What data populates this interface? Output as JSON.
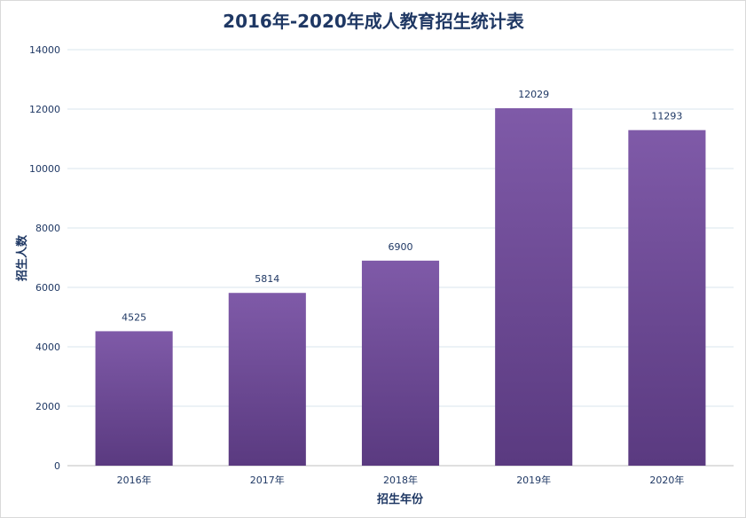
{
  "chart_data": {
    "type": "bar",
    "title": "2016年-2020年成人教育招生统计表",
    "xlabel": "招生年份",
    "ylabel": "招生人数",
    "categories": [
      "2016年",
      "2017年",
      "2018年",
      "2019年",
      "2020年"
    ],
    "values": [
      4525,
      5814,
      6900,
      12029,
      11293
    ],
    "ylim": [
      0,
      14000
    ],
    "yticks": [
      0,
      2000,
      4000,
      6000,
      8000,
      10000,
      12000,
      14000
    ],
    "grid": true,
    "data_labels": true,
    "legend": "none"
  },
  "colors": {
    "bar_top": "#7f5aa8",
    "bar_bottom": "#5a3a80",
    "grid": "#d9e4ec",
    "text": "#1f3864"
  }
}
